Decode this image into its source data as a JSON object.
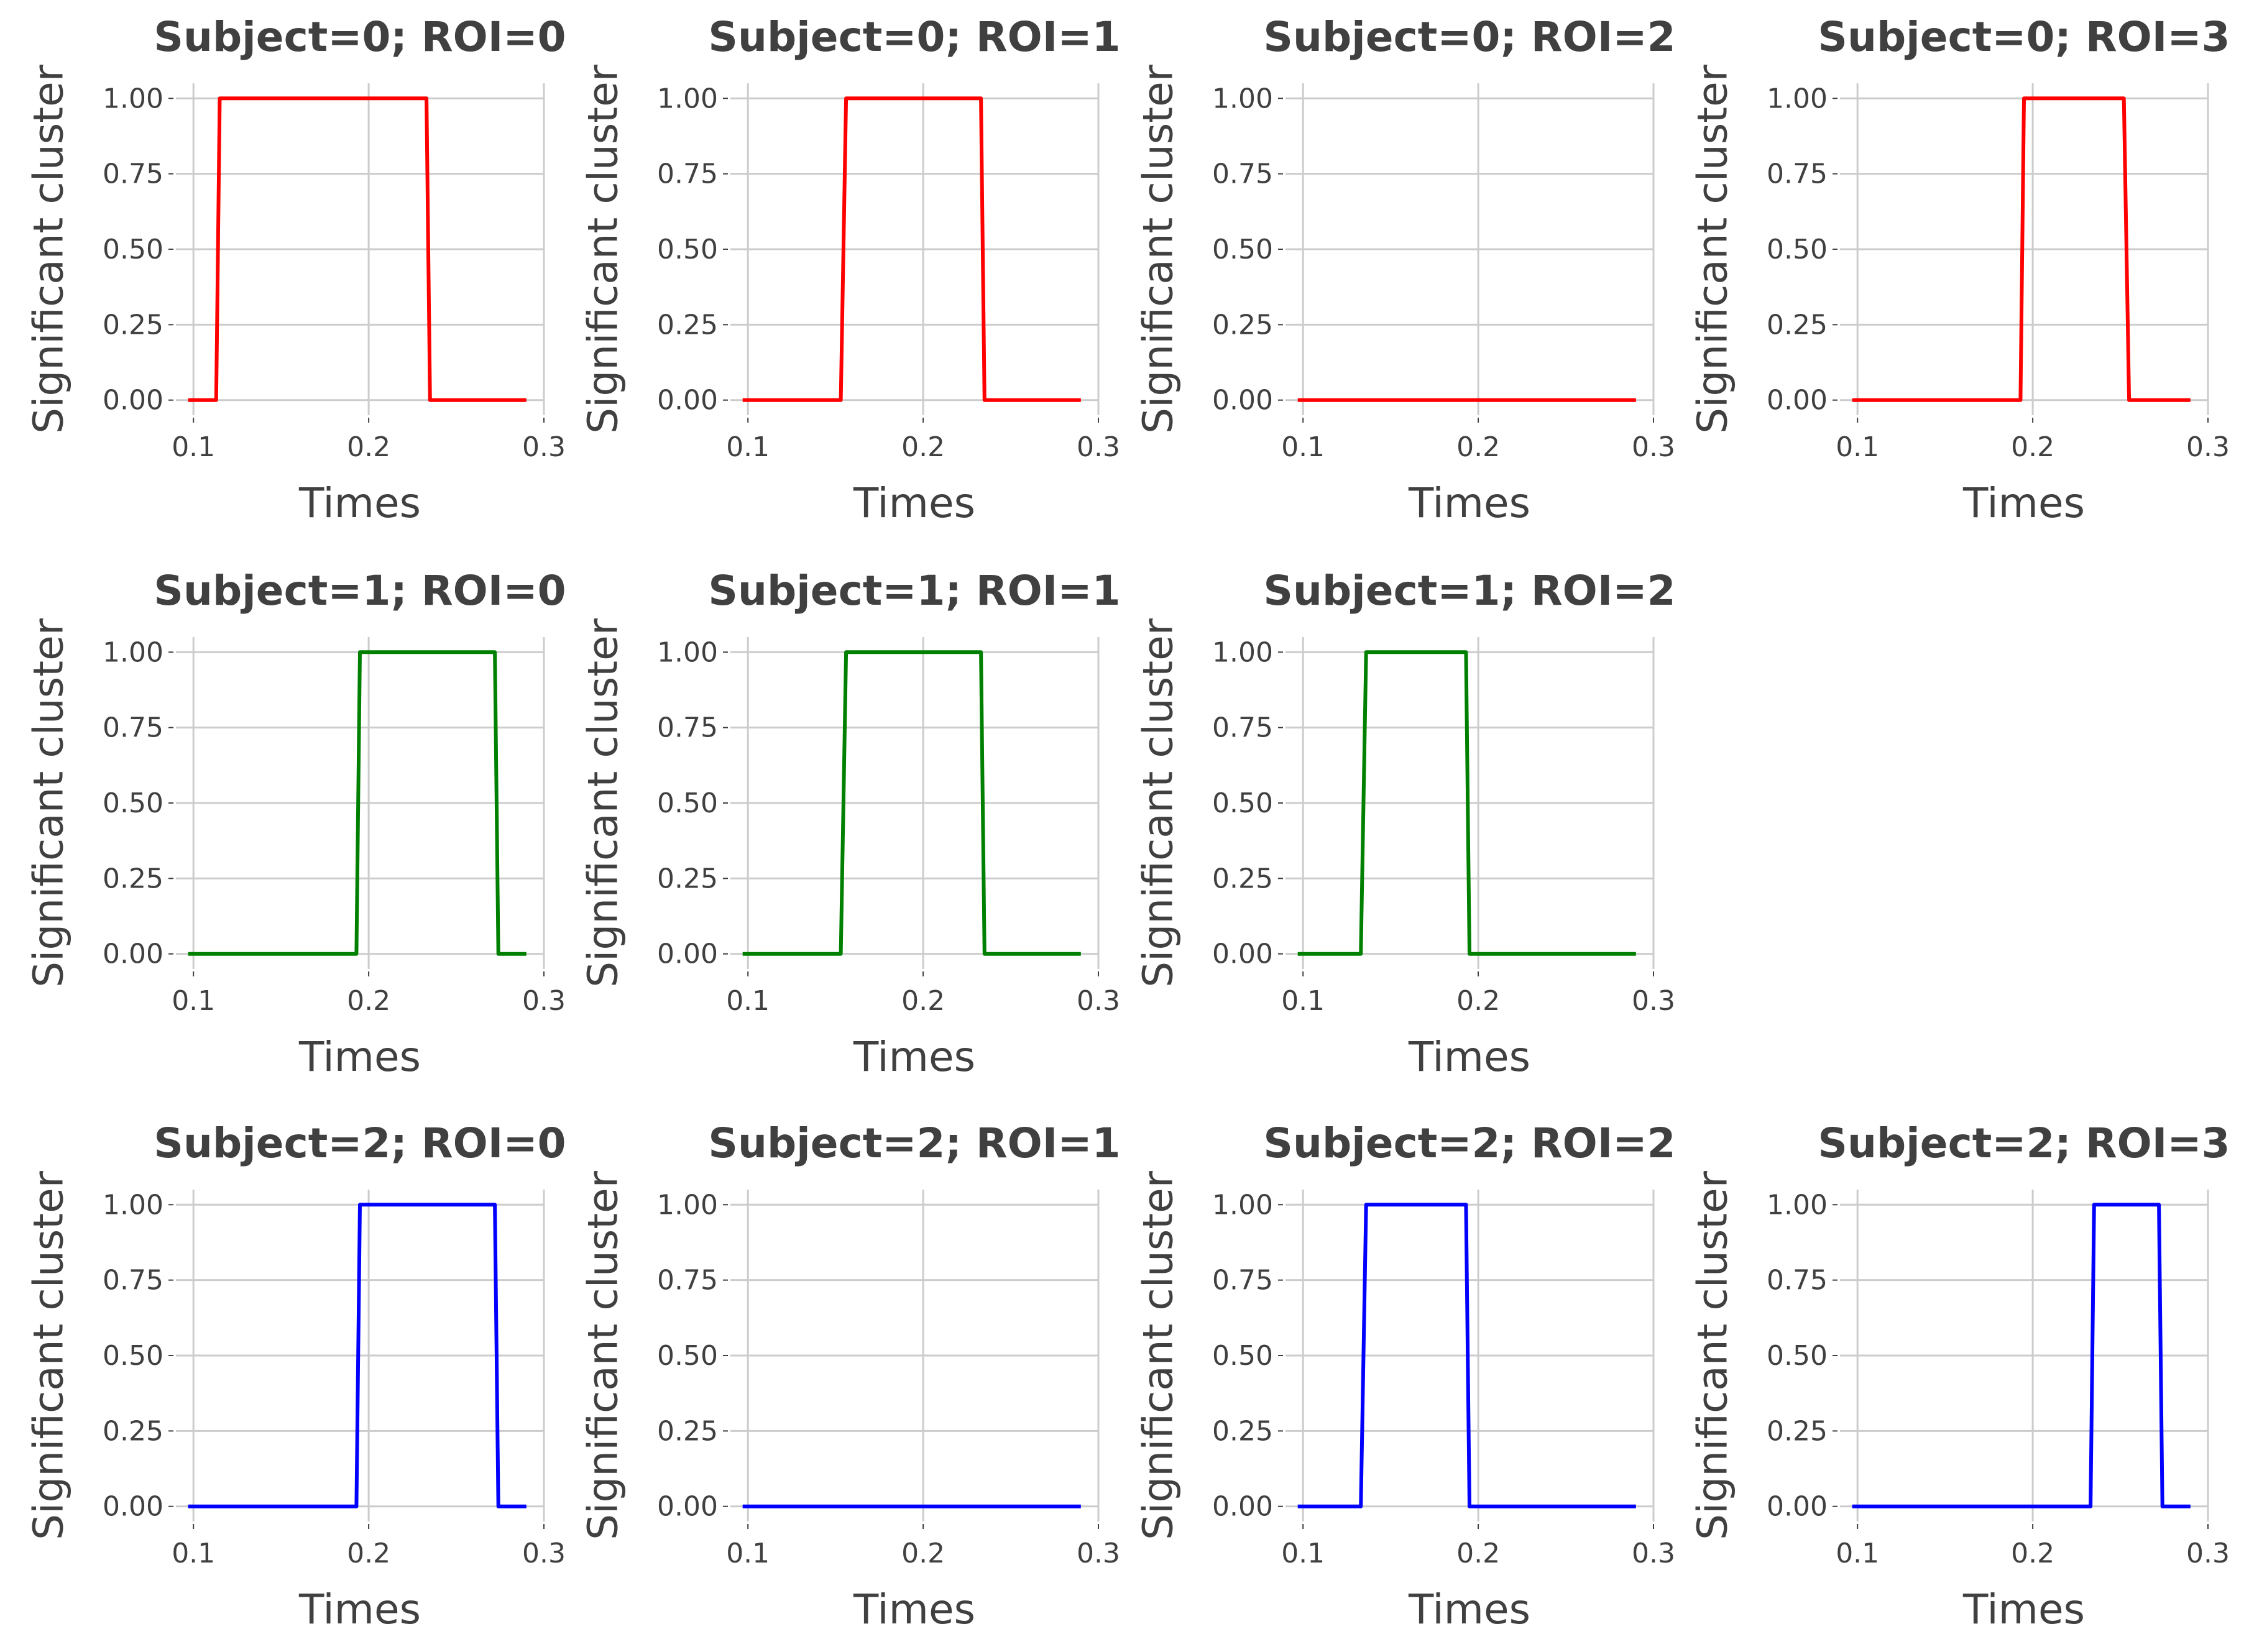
{
  "chart_data": [
    {
      "type": "line",
      "title": "Subject=0; ROI=0",
      "xlabel": "Times",
      "ylabel": "Significant cluster",
      "color": "#ff0000",
      "xlim": [
        0.09,
        0.3
      ],
      "ylim": [
        -0.05,
        1.05
      ],
      "xticks": [
        "0.1",
        "0.2",
        "0.3"
      ],
      "yticks": [
        "0.00",
        "0.25",
        "0.50",
        "0.75",
        "1.00"
      ],
      "grid": true,
      "x": [
        0.097,
        0.113,
        0.115,
        0.233,
        0.235,
        0.29
      ],
      "y": [
        0,
        0,
        1,
        1,
        0,
        0
      ]
    },
    {
      "type": "line",
      "title": "Subject=0; ROI=1",
      "xlabel": "Times",
      "ylabel": "Significant cluster",
      "color": "#ff0000",
      "xlim": [
        0.09,
        0.3
      ],
      "ylim": [
        -0.05,
        1.05
      ],
      "xticks": [
        "0.1",
        "0.2",
        "0.3"
      ],
      "yticks": [
        "0.00",
        "0.25",
        "0.50",
        "0.75",
        "1.00"
      ],
      "grid": true,
      "x": [
        0.097,
        0.153,
        0.156,
        0.233,
        0.235,
        0.29
      ],
      "y": [
        0,
        0,
        1,
        1,
        0,
        0
      ]
    },
    {
      "type": "line",
      "title": "Subject=0; ROI=2",
      "xlabel": "Times",
      "ylabel": "Significant cluster",
      "color": "#ff0000",
      "xlim": [
        0.09,
        0.3
      ],
      "ylim": [
        -0.05,
        1.05
      ],
      "xticks": [
        "0.1",
        "0.2",
        "0.3"
      ],
      "yticks": [
        "0.00",
        "0.25",
        "0.50",
        "0.75",
        "1.00"
      ],
      "grid": true,
      "x": [
        0.097,
        0.29
      ],
      "y": [
        0,
        0
      ]
    },
    {
      "type": "line",
      "title": "Subject=0; ROI=3",
      "xlabel": "Times",
      "ylabel": "Significant cluster",
      "color": "#ff0000",
      "xlim": [
        0.09,
        0.3
      ],
      "ylim": [
        -0.05,
        1.05
      ],
      "xticks": [
        "0.1",
        "0.2",
        "0.3"
      ],
      "yticks": [
        "0.00",
        "0.25",
        "0.50",
        "0.75",
        "1.00"
      ],
      "grid": true,
      "x": [
        0.097,
        0.193,
        0.195,
        0.252,
        0.255,
        0.29
      ],
      "y": [
        0,
        0,
        1,
        1,
        0,
        0
      ]
    },
    {
      "type": "line",
      "title": "Subject=1; ROI=0",
      "xlabel": "Times",
      "ylabel": "Significant cluster",
      "color": "#008000",
      "xlim": [
        0.09,
        0.3
      ],
      "ylim": [
        -0.05,
        1.05
      ],
      "xticks": [
        "0.1",
        "0.2",
        "0.3"
      ],
      "yticks": [
        "0.00",
        "0.25",
        "0.50",
        "0.75",
        "1.00"
      ],
      "grid": true,
      "x": [
        0.097,
        0.193,
        0.195,
        0.272,
        0.274,
        0.29
      ],
      "y": [
        0,
        0,
        1,
        1,
        0,
        0
      ]
    },
    {
      "type": "line",
      "title": "Subject=1; ROI=1",
      "xlabel": "Times",
      "ylabel": "Significant cluster",
      "color": "#008000",
      "xlim": [
        0.09,
        0.3
      ],
      "ylim": [
        -0.05,
        1.05
      ],
      "xticks": [
        "0.1",
        "0.2",
        "0.3"
      ],
      "yticks": [
        "0.00",
        "0.25",
        "0.50",
        "0.75",
        "1.00"
      ],
      "grid": true,
      "x": [
        0.097,
        0.153,
        0.156,
        0.233,
        0.235,
        0.29
      ],
      "y": [
        0,
        0,
        1,
        1,
        0,
        0
      ]
    },
    {
      "type": "line",
      "title": "Subject=1; ROI=2",
      "xlabel": "Times",
      "ylabel": "Significant cluster",
      "color": "#008000",
      "xlim": [
        0.09,
        0.3
      ],
      "ylim": [
        -0.05,
        1.05
      ],
      "xticks": [
        "0.1",
        "0.2",
        "0.3"
      ],
      "yticks": [
        "0.00",
        "0.25",
        "0.50",
        "0.75",
        "1.00"
      ],
      "grid": true,
      "x": [
        0.097,
        0.133,
        0.136,
        0.193,
        0.195,
        0.29
      ],
      "y": [
        0,
        0,
        1,
        1,
        0,
        0
      ]
    },
    {
      "type": "line",
      "title": "Subject=2; ROI=0",
      "xlabel": "Times",
      "ylabel": "Significant cluster",
      "color": "#0000ff",
      "xlim": [
        0.09,
        0.3
      ],
      "ylim": [
        -0.05,
        1.05
      ],
      "xticks": [
        "0.1",
        "0.2",
        "0.3"
      ],
      "yticks": [
        "0.00",
        "0.25",
        "0.50",
        "0.75",
        "1.00"
      ],
      "grid": true,
      "x": [
        0.097,
        0.193,
        0.195,
        0.272,
        0.274,
        0.29
      ],
      "y": [
        0,
        0,
        1,
        1,
        0,
        0
      ]
    },
    {
      "type": "line",
      "title": "Subject=2; ROI=1",
      "xlabel": "Times",
      "ylabel": "Significant cluster",
      "color": "#0000ff",
      "xlim": [
        0.09,
        0.3
      ],
      "ylim": [
        -0.05,
        1.05
      ],
      "xticks": [
        "0.1",
        "0.2",
        "0.3"
      ],
      "yticks": [
        "0.00",
        "0.25",
        "0.50",
        "0.75",
        "1.00"
      ],
      "grid": true,
      "x": [
        0.097,
        0.29
      ],
      "y": [
        0,
        0
      ]
    },
    {
      "type": "line",
      "title": "Subject=2; ROI=2",
      "xlabel": "Times",
      "ylabel": "Significant cluster",
      "color": "#0000ff",
      "xlim": [
        0.09,
        0.3
      ],
      "ylim": [
        -0.05,
        1.05
      ],
      "xticks": [
        "0.1",
        "0.2",
        "0.3"
      ],
      "yticks": [
        "0.00",
        "0.25",
        "0.50",
        "0.75",
        "1.00"
      ],
      "grid": true,
      "x": [
        0.097,
        0.133,
        0.136,
        0.193,
        0.195,
        0.29
      ],
      "y": [
        0,
        0,
        1,
        1,
        0,
        0
      ]
    },
    {
      "type": "line",
      "title": "Subject=2; ROI=3",
      "xlabel": "Times",
      "ylabel": "Significant cluster",
      "color": "#0000ff",
      "xlim": [
        0.09,
        0.3
      ],
      "ylim": [
        -0.05,
        1.05
      ],
      "xticks": [
        "0.1",
        "0.2",
        "0.3"
      ],
      "yticks": [
        "0.00",
        "0.25",
        "0.50",
        "0.75",
        "1.00"
      ],
      "grid": true,
      "x": [
        0.097,
        0.233,
        0.235,
        0.272,
        0.274,
        0.29
      ],
      "y": [
        0,
        0,
        1,
        1,
        0,
        0
      ]
    }
  ]
}
